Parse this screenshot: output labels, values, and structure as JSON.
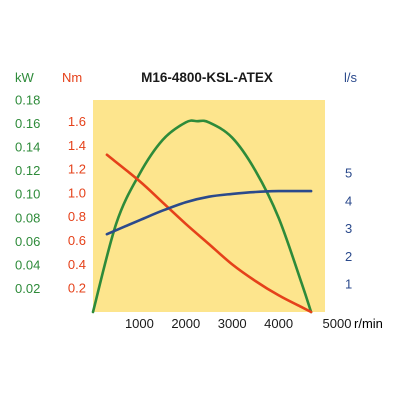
{
  "chart_data": {
    "type": "line",
    "title": "M16-4800-KSL-ATEX",
    "xlabel": "r/min",
    "xlim": [
      0,
      5000
    ],
    "x_ticks": [
      1000,
      2000,
      3000,
      4000,
      5000
    ],
    "grid": false,
    "background": "#fde58d",
    "axes": {
      "power": {
        "unit": "kW",
        "color": "#2e8b3a",
        "range": [
          0,
          0.18
        ],
        "ticks": [
          "0.02",
          "0.04",
          "0.06",
          "0.08",
          "0.10",
          "0.12",
          "0.14",
          "0.16",
          "0.18"
        ]
      },
      "torque": {
        "unit": "Nm",
        "color": "#e5411a",
        "range": [
          0,
          1.78
        ],
        "ticks": [
          "0.2",
          "0.4",
          "0.6",
          "0.8",
          "1.0",
          "1.2",
          "1.4",
          "1.6"
        ]
      },
      "flow": {
        "unit": "l/s",
        "color": "#2b4a8c",
        "range": [
          0,
          7.63
        ],
        "ticks": [
          "1",
          "2",
          "3",
          "4",
          "5"
        ]
      }
    },
    "series": [
      {
        "axis": "power",
        "color": "#2e8b3a",
        "x": [
          0,
          500,
          1000,
          1500,
          2000,
          2250,
          2500,
          3000,
          3500,
          4000,
          4500,
          4700
        ],
        "y": [
          0.0,
          0.075,
          0.117,
          0.146,
          0.161,
          0.162,
          0.161,
          0.148,
          0.12,
          0.08,
          0.024,
          0.0
        ]
      },
      {
        "axis": "torque",
        "color": "#e5411a",
        "x": [
          300,
          1000,
          1500,
          2000,
          2500,
          3000,
          3500,
          4000,
          4500,
          4700
        ],
        "y": [
          1.32,
          1.1,
          0.92,
          0.74,
          0.57,
          0.4,
          0.26,
          0.14,
          0.04,
          0.0
        ]
      },
      {
        "axis": "flow",
        "color": "#2b4a8c",
        "x": [
          300,
          1000,
          1500,
          2000,
          2500,
          3000,
          3500,
          4000,
          4700
        ],
        "y": [
          2.8,
          3.3,
          3.65,
          3.95,
          4.15,
          4.25,
          4.32,
          4.35,
          4.35
        ]
      }
    ]
  }
}
